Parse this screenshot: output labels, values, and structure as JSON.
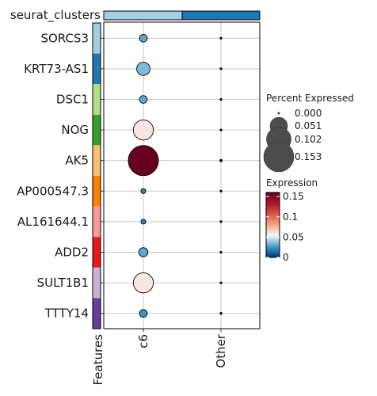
{
  "chart_data": {
    "type": "dotplot",
    "column_annotation_label": "seurat_clusters",
    "column_annotation_colors": [
      "#a6cee3",
      "#1f78b4"
    ],
    "row_annotation_label": "Features",
    "row_annotation_colors": [
      "#a6cee3",
      "#1f78b4",
      "#b2df8a",
      "#33a02c",
      "#fdbf6f",
      "#ff7f00",
      "#fb9a99",
      "#e31a1c",
      "#cab2d6",
      "#6a3d9a"
    ],
    "groups": [
      "c6",
      "Other"
    ],
    "features": [
      "SORCS3",
      "KRT73-AS1",
      "DSC1",
      "NOG",
      "AK5",
      "AP000547.3",
      "AL161644.1",
      "ADD2",
      "SULT1B1",
      "TTTY14"
    ],
    "percent_expressed": [
      [
        0.01,
        0.0005
      ],
      [
        0.03,
        0.0005
      ],
      [
        0.01,
        0.0005
      ],
      [
        0.068,
        0.0005
      ],
      [
        0.153,
        0.001
      ],
      [
        0.004,
        0.0005
      ],
      [
        0.004,
        0.0005
      ],
      [
        0.014,
        0.0005
      ],
      [
        0.068,
        0.0005
      ],
      [
        0.01,
        0.0005
      ]
    ],
    "average_expression": [
      [
        0.03,
        0.0
      ],
      [
        0.035,
        0.0
      ],
      [
        0.03,
        0.0
      ],
      [
        0.06,
        0.0
      ],
      [
        0.16,
        0.0
      ],
      [
        0.02,
        0.0
      ],
      [
        0.02,
        0.0
      ],
      [
        0.03,
        0.0
      ],
      [
        0.06,
        0.0
      ],
      [
        0.025,
        0.0
      ]
    ],
    "size_legend": {
      "title": "Percent Expressed",
      "breaks": [
        0.0,
        0.051,
        0.102,
        0.153
      ],
      "labels": [
        "0.000",
        "0.051",
        "0.102",
        "0.153"
      ]
    },
    "color_legend": {
      "title": "Expression",
      "range": [
        0,
        0.16
      ],
      "breaks": [
        0,
        0.05,
        0.1,
        0.15
      ],
      "labels": [
        "0",
        "0.05",
        "0.1",
        "0.15"
      ],
      "colors": [
        "#053061",
        "#2166ac",
        "#4393c3",
        "#92c5de",
        "#f7f7f7",
        "#f4a582",
        "#d6604d",
        "#b2182b",
        "#67001f"
      ],
      "color_stops": [
        0,
        0.0125,
        0.025,
        0.0375,
        0.055,
        0.08,
        0.105,
        0.13,
        0.16
      ]
    },
    "grid": true
  }
}
